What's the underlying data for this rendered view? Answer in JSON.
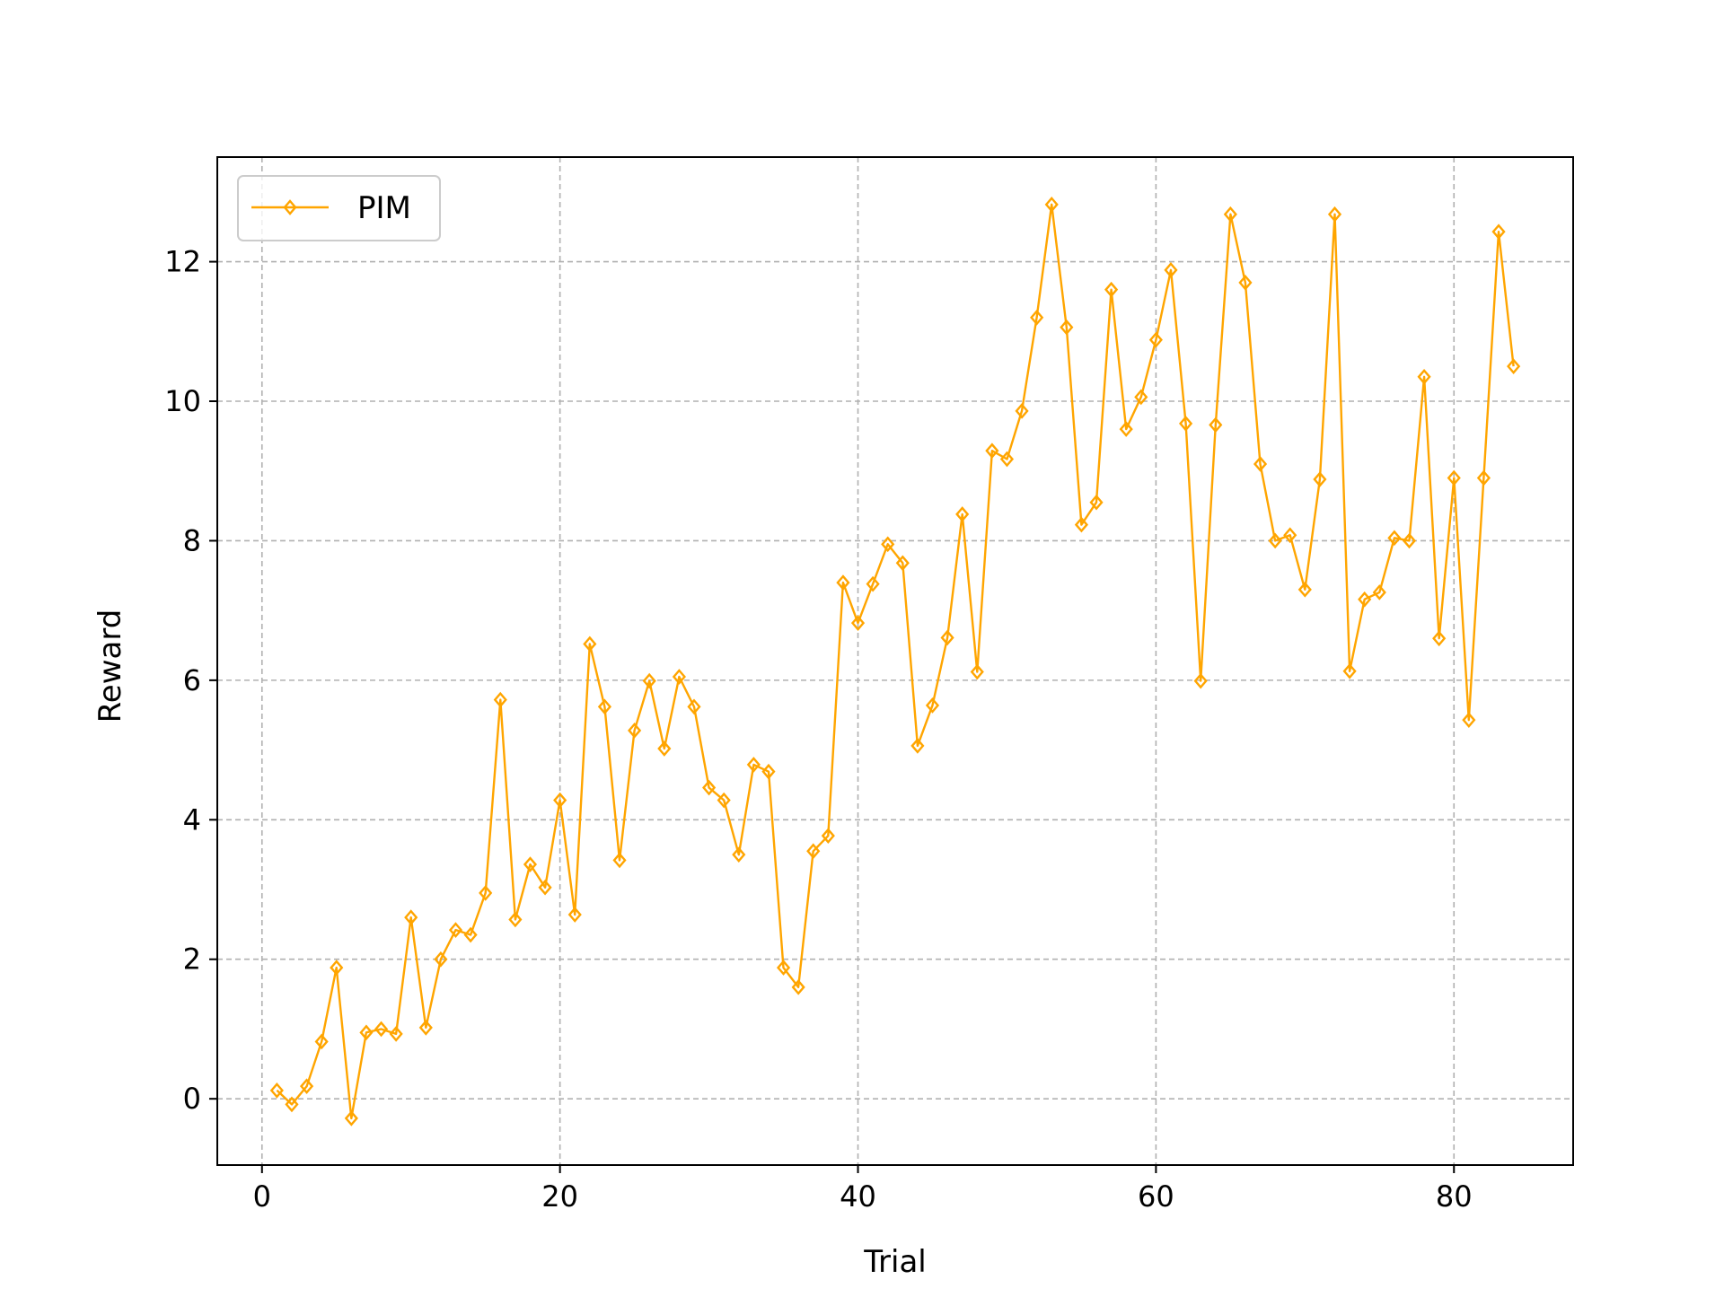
{
  "chart_data": {
    "type": "line",
    "title": "",
    "xlabel": "Trial",
    "ylabel": "Reward",
    "xlim": [
      -3,
      88
    ],
    "ylim": [
      -0.95,
      13.5
    ],
    "x_ticks": [
      0,
      20,
      40,
      60,
      80
    ],
    "y_ticks": [
      0,
      2,
      4,
      6,
      8,
      10,
      12
    ],
    "grid": true,
    "legend_position": "top-left",
    "series": [
      {
        "name": "PIM",
        "color": "#FFA500",
        "marker": "thin-diamond",
        "x": [
          1,
          2,
          3,
          4,
          5,
          6,
          7,
          8,
          9,
          10,
          11,
          12,
          13,
          14,
          15,
          16,
          17,
          18,
          19,
          20,
          21,
          22,
          23,
          24,
          25,
          26,
          27,
          28,
          29,
          30,
          31,
          32,
          33,
          34,
          35,
          36,
          37,
          38,
          39,
          40,
          41,
          42,
          43,
          44,
          45,
          46,
          47,
          48,
          49,
          50,
          51,
          52,
          53,
          54,
          55,
          56,
          57,
          58,
          59,
          60,
          61,
          62,
          63,
          64,
          65,
          66,
          67,
          68,
          69,
          70,
          71,
          72,
          73,
          74,
          75,
          76,
          77,
          78,
          79,
          80,
          81,
          82,
          83,
          84
        ],
        "y": [
          0.12,
          -0.08,
          0.18,
          0.82,
          1.88,
          -0.28,
          0.95,
          1.0,
          0.93,
          2.6,
          1.02,
          2.0,
          2.42,
          2.35,
          2.95,
          5.72,
          2.57,
          3.36,
          3.03,
          4.28,
          2.64,
          6.52,
          5.62,
          3.42,
          5.28,
          5.99,
          5.02,
          6.05,
          5.62,
          4.46,
          4.28,
          3.5,
          4.79,
          4.69,
          1.88,
          1.6,
          3.55,
          3.77,
          7.4,
          6.82,
          7.38,
          7.95,
          7.68,
          5.06,
          5.64,
          6.61,
          8.38,
          6.12,
          9.29,
          9.17,
          9.86,
          11.2,
          12.82,
          11.06,
          8.23,
          8.55,
          11.6,
          9.6,
          10.06,
          10.88,
          11.88,
          9.68,
          5.99,
          9.66,
          12.68,
          11.7,
          9.1,
          8.0,
          8.08,
          7.3,
          8.88,
          12.68,
          6.13,
          7.16,
          7.26,
          8.04,
          8.0,
          10.35,
          6.6,
          8.9,
          5.43,
          8.9,
          12.43,
          10.5
        ]
      }
    ]
  }
}
